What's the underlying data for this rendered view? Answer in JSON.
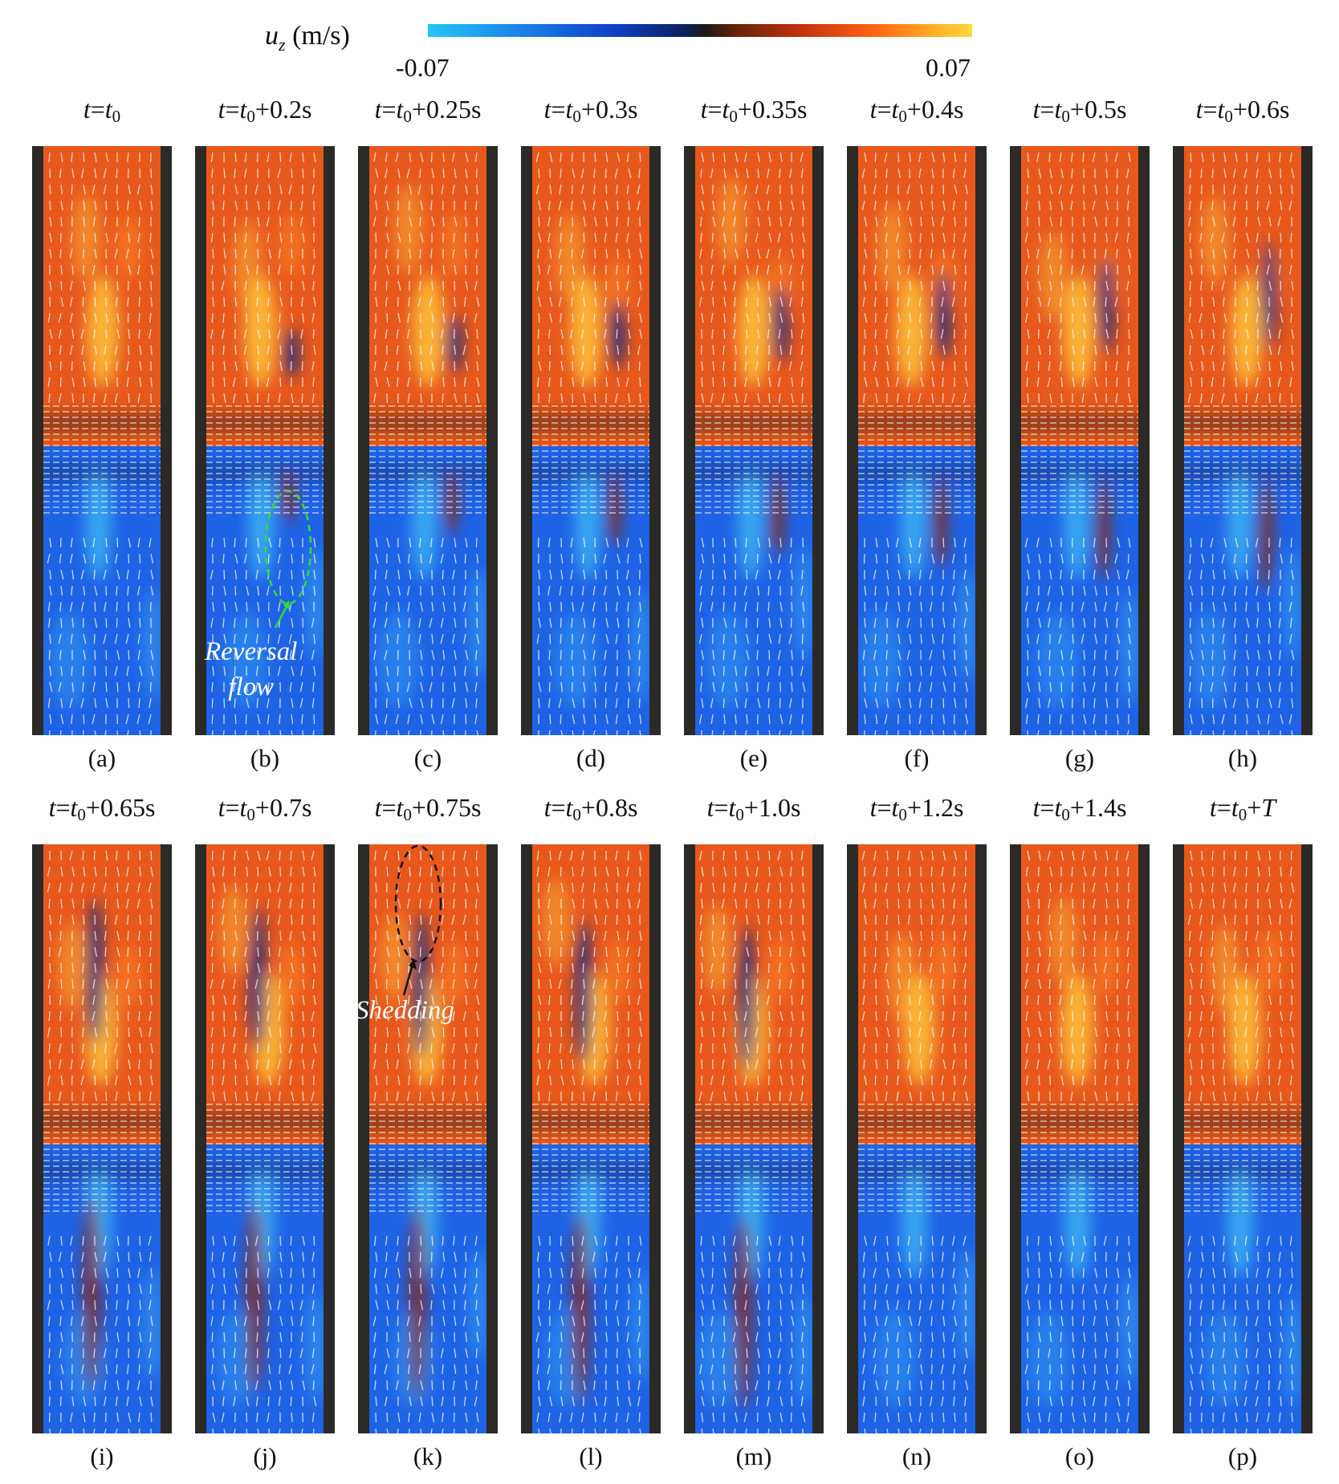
{
  "colorbar": {
    "label": "u",
    "label_sub": "z",
    "unit": "(m/s)",
    "min_label": "-0.07",
    "max_label": "0.07",
    "min": -0.07,
    "max": 0.07
  },
  "rows": [
    {
      "panels": [
        {
          "label": "(a)",
          "t": "t",
          "t0": "t",
          "sub": "0",
          "suffix": "",
          "reversal": 0
        },
        {
          "label": "(b)",
          "t": "t",
          "t0": "t",
          "sub": "0",
          "suffix": "+0.2s",
          "reversal": 1
        },
        {
          "label": "(c)",
          "t": "t",
          "t0": "t",
          "sub": "0",
          "suffix": "+0.25s",
          "reversal": 1
        },
        {
          "label": "(d)",
          "t": "t",
          "t0": "t",
          "sub": "0",
          "suffix": "+0.3s",
          "reversal": 1
        },
        {
          "label": "(e)",
          "t": "t",
          "t0": "t",
          "sub": "0",
          "suffix": "+0.35s",
          "reversal": 1
        },
        {
          "label": "(f)",
          "t": "t",
          "t0": "t",
          "sub": "0",
          "suffix": "+0.4s",
          "reversal": 1
        },
        {
          "label": "(g)",
          "t": "t",
          "t0": "t",
          "sub": "0",
          "suffix": "+0.5s",
          "reversal": 1
        },
        {
          "label": "(h)",
          "t": "t",
          "t0": "t",
          "sub": "0",
          "suffix": "+0.6s",
          "reversal": 1
        }
      ]
    },
    {
      "panels": [
        {
          "label": "(i)",
          "t": "t",
          "t0": "t",
          "sub": "0",
          "suffix": "+0.65s",
          "reversal": 1
        },
        {
          "label": "(j)",
          "t": "t",
          "t0": "t",
          "sub": "0",
          "suffix": "+0.7s",
          "reversal": 1
        },
        {
          "label": "(k)",
          "t": "t",
          "t0": "t",
          "sub": "0",
          "suffix": "+0.75s",
          "reversal": 1
        },
        {
          "label": "(l)",
          "t": "t",
          "t0": "t",
          "sub": "0",
          "suffix": "+0.8s",
          "reversal": 1
        },
        {
          "label": "(m)",
          "t": "t",
          "t0": "t",
          "sub": "0",
          "suffix": "+1.0s",
          "reversal": 1
        },
        {
          "label": "(n)",
          "t": "t",
          "t0": "t",
          "sub": "0",
          "suffix": "+1.2s",
          "reversal": 0
        },
        {
          "label": "(o)",
          "t": "t",
          "t0": "t",
          "sub": "0",
          "suffix": "+1.4s",
          "reversal": 0
        },
        {
          "label": "(p)",
          "t": "t",
          "t0": "t",
          "sub": "0",
          "suffix": "+T",
          "reversal": 0
        }
      ]
    }
  ],
  "annotations": {
    "reversal_line1": "Reversal",
    "reversal_line2": "flow",
    "shedding": "Shedding"
  },
  "colors": {
    "wall": "#2b2a26",
    "positive": "#e8581b",
    "positive_peak": "#ffc23a",
    "negative": "#1e62e6",
    "negative_light": "#3fb8f5",
    "reversal_positive": "#8a2a0c",
    "vortex_negative": "#0b2c86",
    "reversal_marker": "#33dd33",
    "shedding_marker": "#111111",
    "vector": "#ffffff"
  }
}
